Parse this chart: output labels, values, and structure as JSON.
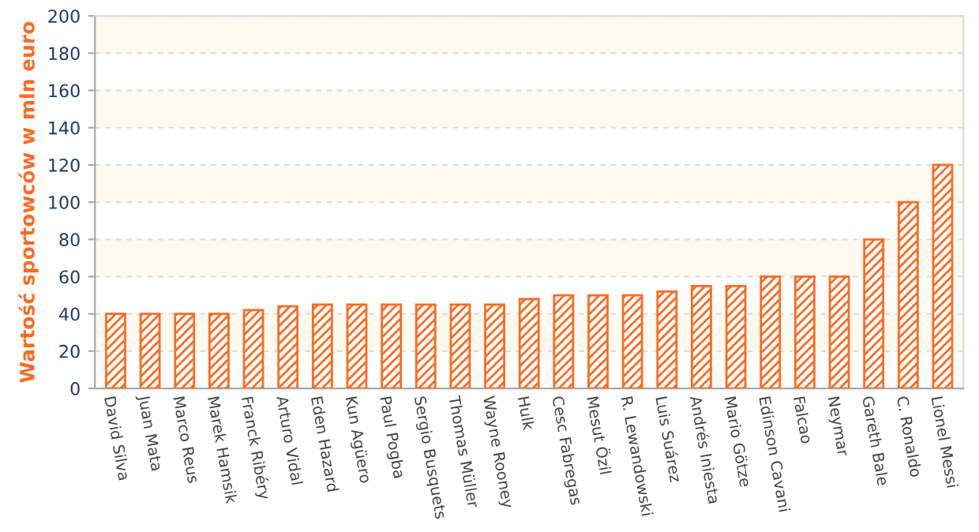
{
  "chart_data": {
    "type": "bar",
    "ylabel": "Wartość sportowców w mln euro",
    "categories": [
      "David Silva",
      "Juan Mata",
      "Marco Reus",
      "Marek Hamsik",
      "Franck Ribéry",
      "Arturo Vidal",
      "Eden Hazard",
      "Kun Agüero",
      "Paul Pogba",
      "Sergio Busquets",
      "Thomas Müller",
      "Wayne Rooney",
      "Hulk",
      "Cesc Fabregas",
      "Mesut Özil",
      "R. Lewandowski",
      "Luis Suárez",
      "Andrés Iniesta",
      "Mario Götze",
      "Edinson Cavani",
      "Falcao",
      "Neymar",
      "Gareth Bale",
      "C. Ronaldo",
      "Lionel Messi"
    ],
    "values": [
      40,
      40,
      40,
      40,
      42,
      44,
      45,
      45,
      45,
      45,
      45,
      45,
      48,
      50,
      50,
      50,
      52,
      55,
      55,
      60,
      60,
      60,
      80,
      100,
      120
    ],
    "color": "#ff6a1f",
    "ylim": [
      0,
      200
    ],
    "yticks": [
      0,
      20,
      40,
      60,
      80,
      100,
      120,
      140,
      160,
      180,
      200
    ],
    "grid": "y",
    "bands": [
      {
        "axis": "y",
        "from": 20,
        "to": 40,
        "color": "#fefaf0"
      },
      {
        "axis": "y",
        "from": 60,
        "to": 80,
        "color": "#fefaf0"
      },
      {
        "axis": "y",
        "from": 100,
        "to": 120,
        "color": "#fefaf0"
      },
      {
        "axis": "y",
        "from": 140,
        "to": 160,
        "color": "#fefaf0"
      },
      {
        "axis": "y",
        "from": 180,
        "to": 200,
        "color": "#fefaf0"
      }
    ]
  }
}
